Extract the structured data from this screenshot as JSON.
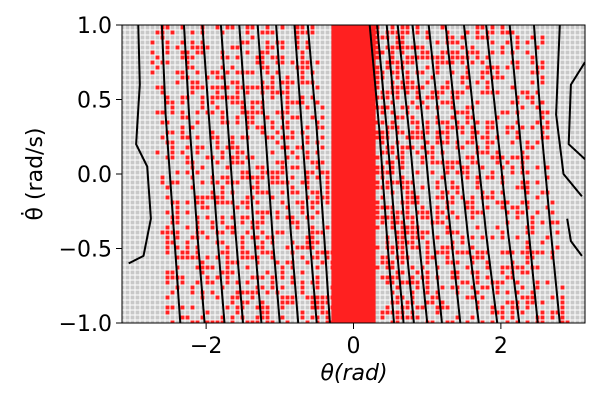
{
  "chart_data": {
    "type": "heatmap",
    "title": "",
    "xlabel": "θ(rad)",
    "ylabel": "θ̇ (rad/s)",
    "xlim": [
      -3.14159,
      3.14159
    ],
    "ylim": [
      -1.0,
      1.0
    ],
    "x_ticks": [
      {
        "value": -2,
        "label": "−2"
      },
      {
        "value": 0,
        "label": "0"
      },
      {
        "value": 2,
        "label": "2"
      }
    ],
    "y_ticks": [
      {
        "value": -1.0,
        "label": "−1.0"
      },
      {
        "value": -0.5,
        "label": "−0.5"
      },
      {
        "value": 0.0,
        "label": "0.0"
      },
      {
        "value": 0.5,
        "label": "0.5"
      },
      {
        "value": 1.0,
        "label": "1.0"
      }
    ],
    "grid": false,
    "legend": "none",
    "colors": {
      "background_cells": "#c8c8c8",
      "highlight_cells": "#ff2020",
      "contours": "#000000"
    },
    "central_band": {
      "x_min": -0.3,
      "x_max": 0.3
    },
    "contour_lines": [
      {
        "x": [
          -2.6,
          -2.55,
          -2.45,
          -2.35
        ],
        "y": [
          1.0,
          0.4,
          -0.3,
          -1.0
        ]
      },
      {
        "x": [
          -2.3,
          -2.22,
          -2.12,
          -2.02
        ],
        "y": [
          1.0,
          0.3,
          -0.4,
          -1.0
        ]
      },
      {
        "x": [
          -2.05,
          -1.95,
          -1.85,
          -1.75
        ],
        "y": [
          1.0,
          0.3,
          -0.4,
          -1.0
        ]
      },
      {
        "x": [
          -1.8,
          -1.7,
          -1.6,
          -1.5
        ],
        "y": [
          1.0,
          0.3,
          -0.4,
          -1.0
        ]
      },
      {
        "x": [
          -1.55,
          -1.45,
          -1.35,
          -1.25
        ],
        "y": [
          1.0,
          0.3,
          -0.4,
          -1.0
        ]
      },
      {
        "x": [
          -1.3,
          -1.2,
          -1.1,
          -1.0
        ],
        "y": [
          1.0,
          0.3,
          -0.4,
          -1.0
        ]
      },
      {
        "x": [
          -1.05,
          -0.95,
          -0.85,
          -0.75
        ],
        "y": [
          1.0,
          0.3,
          -0.4,
          -1.0
        ]
      },
      {
        "x": [
          -0.8,
          -0.7,
          -0.6,
          -0.5
        ],
        "y": [
          1.0,
          0.3,
          -0.4,
          -1.0
        ]
      },
      {
        "x": [
          -0.62,
          -0.5,
          -0.4,
          -0.32
        ],
        "y": [
          1.0,
          0.3,
          -0.4,
          -1.0
        ]
      },
      {
        "x": [
          0.22,
          0.35,
          0.45,
          0.55
        ],
        "y": [
          1.0,
          0.3,
          -0.4,
          -1.0
        ]
      },
      {
        "x": [
          0.32,
          0.45,
          0.57,
          0.68
        ],
        "y": [
          1.0,
          0.3,
          -0.4,
          -1.0
        ]
      },
      {
        "x": [
          0.45,
          0.58,
          0.7,
          0.82
        ],
        "y": [
          1.0,
          0.3,
          -0.4,
          -1.0
        ]
      },
      {
        "x": [
          0.6,
          0.75,
          0.88,
          1.0
        ],
        "y": [
          1.0,
          0.3,
          -0.4,
          -1.0
        ]
      },
      {
        "x": [
          0.8,
          0.95,
          1.08,
          1.2
        ],
        "y": [
          1.0,
          0.3,
          -0.4,
          -1.0
        ]
      },
      {
        "x": [
          1.02,
          1.17,
          1.32,
          1.45
        ],
        "y": [
          1.0,
          0.3,
          -0.4,
          -1.0
        ]
      },
      {
        "x": [
          1.25,
          1.4,
          1.55,
          1.7
        ],
        "y": [
          1.0,
          0.3,
          -0.4,
          -1.0
        ]
      },
      {
        "x": [
          1.5,
          1.65,
          1.8,
          1.95
        ],
        "y": [
          1.0,
          0.3,
          -0.4,
          -1.0
        ]
      },
      {
        "x": [
          1.8,
          1.95,
          2.1,
          2.25
        ],
        "y": [
          1.0,
          0.3,
          -0.4,
          -1.0
        ]
      },
      {
        "x": [
          2.12,
          2.25,
          2.38,
          2.5
        ],
        "y": [
          1.0,
          0.3,
          -0.4,
          -1.0
        ]
      },
      {
        "x": [
          2.45,
          2.55,
          2.68,
          2.8
        ],
        "y": [
          1.0,
          0.3,
          -0.4,
          -1.0
        ]
      },
      {
        "x": [
          -2.92,
          -2.9,
          -2.95,
          -2.8,
          -2.75,
          -2.85,
          -3.05
        ],
        "y": [
          1.0,
          0.6,
          0.2,
          0.05,
          -0.3,
          -0.55,
          -0.6
        ]
      },
      {
        "x": [
          2.8,
          2.75,
          2.85,
          3.1
        ],
        "y": [
          1.0,
          0.4,
          0.0,
          -0.15
        ]
      },
      {
        "x": [
          3.14,
          2.95,
          2.92,
          3.14
        ],
        "y": [
          0.75,
          0.6,
          0.2,
          0.1
        ]
      },
      {
        "x": [
          2.9,
          2.95,
          3.1
        ],
        "y": [
          -0.3,
          -0.45,
          -0.55
        ]
      }
    ]
  }
}
